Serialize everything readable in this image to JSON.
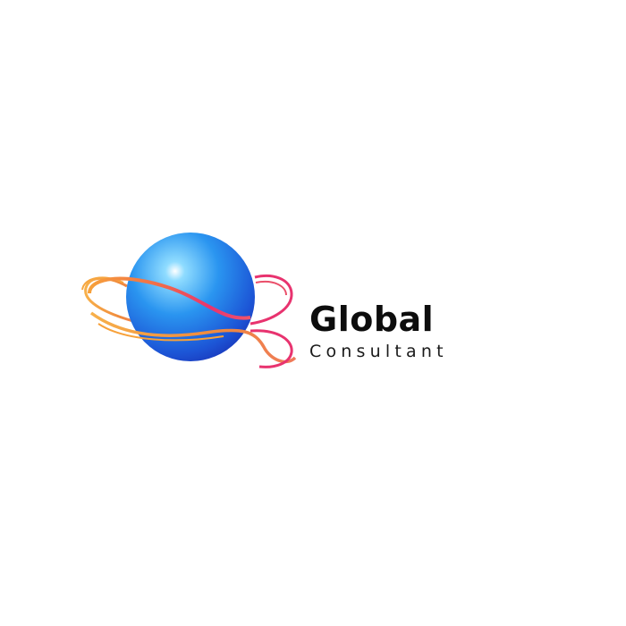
{
  "logo": {
    "name": "Global",
    "tagline": "Consultant",
    "globe_icon": "globe-icon",
    "ribbon_icon": "orbit-ribbon-icon",
    "colors": {
      "globe_light": "#7fd3ff",
      "globe_mid": "#1e7fe8",
      "globe_dark": "#1a3fc4",
      "ribbon_orange": "#f7a13a",
      "ribbon_pink": "#e8336f",
      "text": "#0d0d0d",
      "background": "#ffffff"
    }
  }
}
